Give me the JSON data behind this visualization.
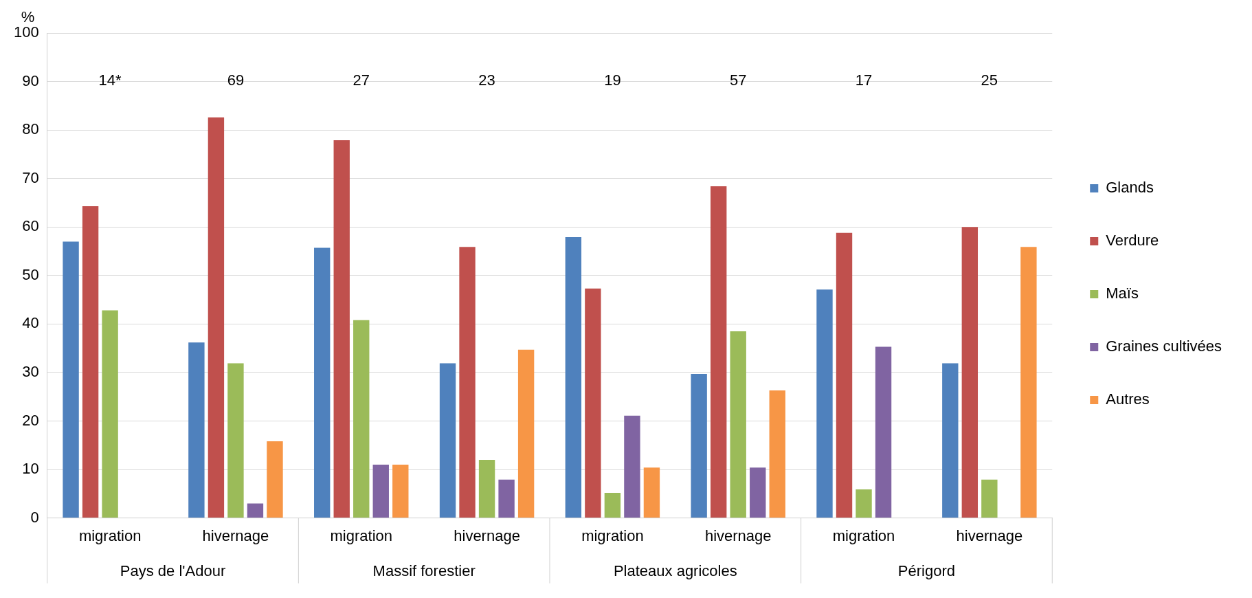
{
  "chart_data": {
    "type": "bar",
    "ylabel": "%",
    "categories": [
      "migration",
      "hivernage",
      "migration",
      "hivernage",
      "migration",
      "hivernage",
      "migration",
      "hivernage"
    ],
    "series": [
      {
        "name": "Glands",
        "color": "#4f81bd",
        "values": [
          57.0,
          36.2,
          55.7,
          31.9,
          57.9,
          29.7,
          47.1,
          31.9
        ]
      },
      {
        "name": "Verdure",
        "color": "#c0504d",
        "values": [
          64.3,
          82.6,
          77.9,
          55.9,
          47.3,
          68.4,
          58.8,
          60.0
        ]
      },
      {
        "name": "Maïs",
        "color": "#9bbb59",
        "values": [
          42.8,
          31.9,
          40.8,
          12.0,
          5.2,
          38.5,
          5.9,
          7.9
        ]
      },
      {
        "name": "Graines cultivées",
        "color": "#8064a2",
        "values": [
          null,
          3.0,
          11.0,
          7.9,
          21.1,
          10.4,
          35.3,
          null
        ]
      },
      {
        "name": "Autres",
        "color": "#f79646",
        "values": [
          null,
          15.8,
          11.0,
          34.7,
          10.4,
          26.3,
          null,
          55.9
        ]
      }
    ],
    "annotations": [
      "14*",
      "69",
      "27",
      "23",
      "19",
      "57",
      "17",
      "25",
      "Pays de l'Adour",
      "Massif forestier",
      "Plateaux agricoles",
      "Périgord"
    ],
    "ylim": [
      0,
      100
    ],
    "yticks": [
      0,
      10,
      20,
      30,
      40,
      50,
      60,
      70,
      80,
      90,
      100
    ],
    "grid": "y",
    "legend": "right"
  }
}
